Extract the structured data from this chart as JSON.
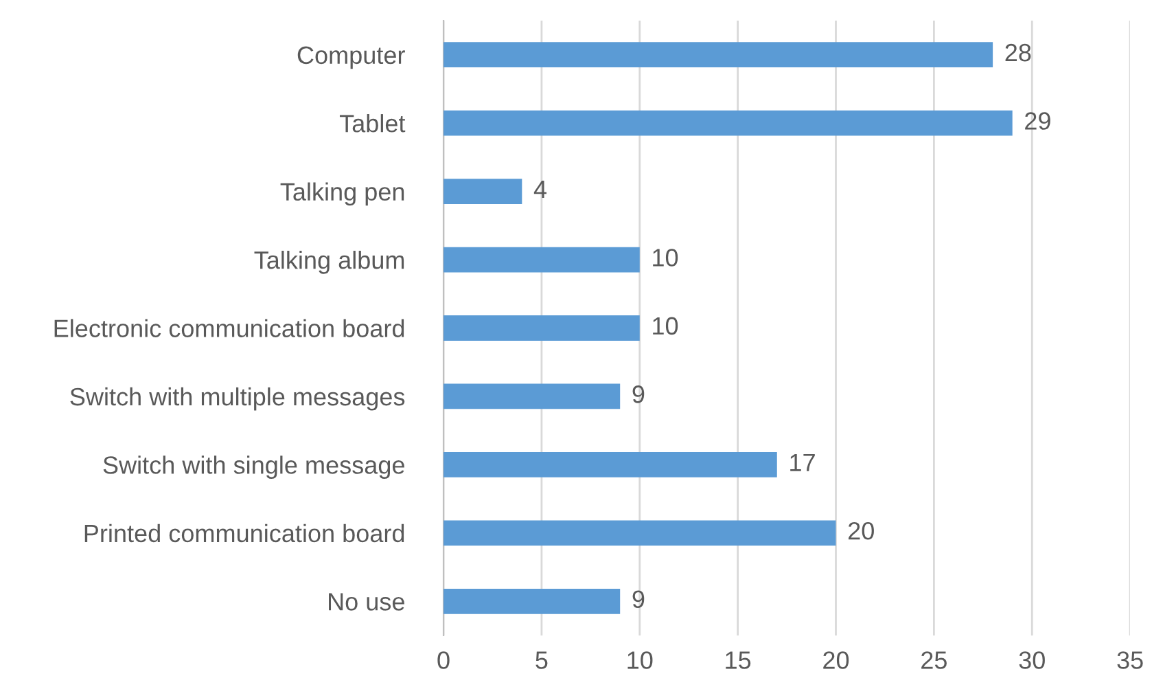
{
  "chart_data": {
    "type": "bar",
    "orientation": "horizontal",
    "categories": [
      "Computer",
      "Tablet",
      "Talking pen",
      "Talking album",
      "Electronic communication board",
      "Switch with multiple messages",
      "Switch with single message",
      "Printed communication board",
      "No use"
    ],
    "values": [
      28,
      29,
      4,
      10,
      10,
      9,
      17,
      20,
      9
    ],
    "color": "#5b9bd5",
    "xlim": [
      0,
      35
    ],
    "xticks": [
      0,
      5,
      10,
      15,
      20,
      25,
      30,
      35
    ],
    "grid": "x",
    "data_labels": true,
    "legend": false
  }
}
